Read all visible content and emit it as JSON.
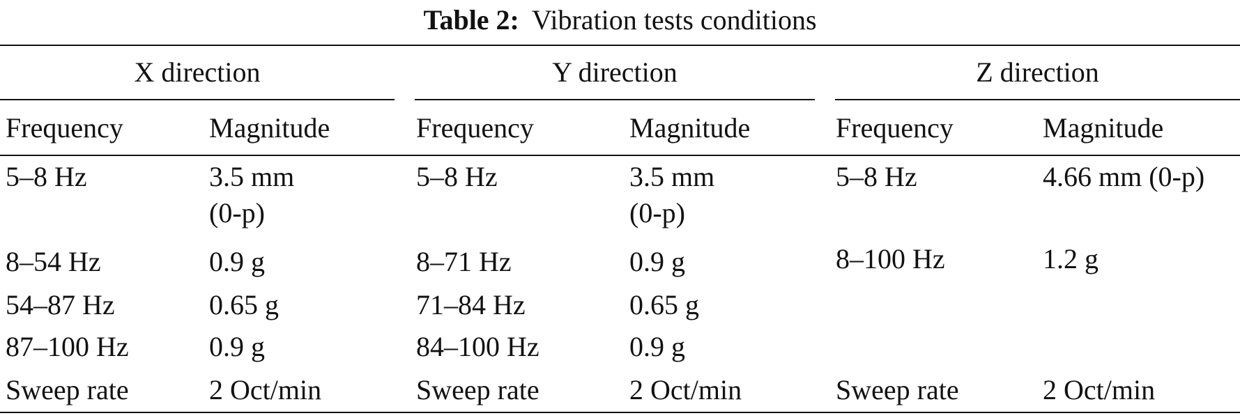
{
  "caption": {
    "label": "Table 2:",
    "text": "Vibration tests conditions"
  },
  "groups": [
    "X direction",
    "Y direction",
    "Z direction"
  ],
  "subheaders": {
    "frequency": "Frequency",
    "magnitude": "Magnitude"
  },
  "rows": [
    {
      "x": {
        "frequency": "5–8 Hz",
        "magnitude": [
          "3.5 mm",
          "(0-p)"
        ]
      },
      "y": {
        "frequency": "5–8 Hz",
        "magnitude": [
          "3.5 mm",
          "(0-p)"
        ]
      },
      "z": {
        "frequency": "5–8 Hz",
        "magnitude": [
          "4.66 mm (0-p)"
        ]
      }
    },
    {
      "x": {
        "frequency": "8–54 Hz",
        "magnitude": [
          "0.9 g"
        ]
      },
      "y": {
        "frequency": "8–71 Hz",
        "magnitude": [
          "0.9 g"
        ]
      },
      "z": {
        "frequency": "8–100 Hz",
        "magnitude": [
          "1.2 g"
        ]
      }
    },
    {
      "x": {
        "frequency": "54–87 Hz",
        "magnitude": [
          "0.65 g"
        ]
      },
      "y": {
        "frequency": "71–84 Hz",
        "magnitude": [
          "0.65 g"
        ]
      },
      "z": {
        "frequency": "",
        "magnitude": [
          ""
        ]
      }
    },
    {
      "x": {
        "frequency": "87–100 Hz",
        "magnitude": [
          "0.9 g"
        ]
      },
      "y": {
        "frequency": "84–100 Hz",
        "magnitude": [
          "0.9 g"
        ]
      },
      "z": {
        "frequency": "",
        "magnitude": [
          ""
        ]
      }
    },
    {
      "x": {
        "frequency": "Sweep rate",
        "magnitude": [
          "2 Oct/min"
        ]
      },
      "y": {
        "frequency": "Sweep rate",
        "magnitude": [
          "2 Oct/min"
        ]
      },
      "z": {
        "frequency": "Sweep rate",
        "magnitude": [
          "2 Oct/min"
        ]
      }
    }
  ]
}
